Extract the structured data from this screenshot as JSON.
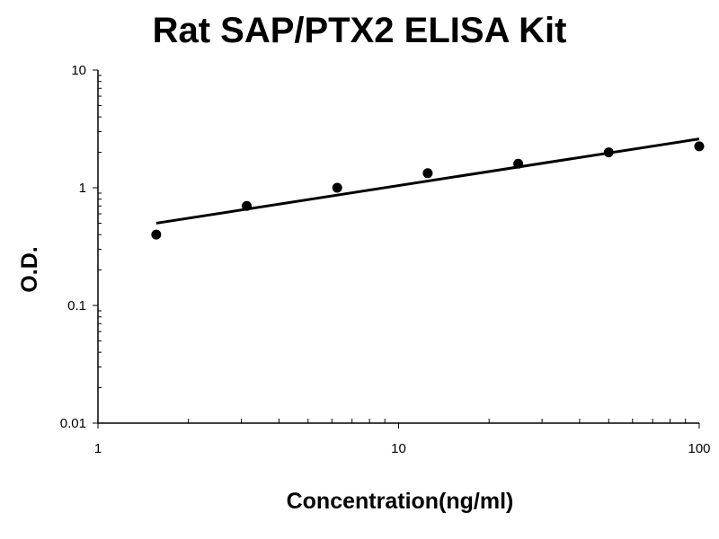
{
  "chart_data": {
    "type": "scatter",
    "title": "Rat SAP/PTX2 ELISA Kit",
    "xlabel": "Concentration(ng/ml)",
    "ylabel": "O.D.",
    "x_scale": "log",
    "y_scale": "log",
    "xlim": [
      1,
      100
    ],
    "ylim": [
      0.01,
      10
    ],
    "x_ticks": [
      "1",
      "10",
      "100"
    ],
    "y_ticks": [
      "0.01",
      "0.1",
      "1",
      "10"
    ],
    "grid": false,
    "legend": "none",
    "series": [
      {
        "x": [
          1.5625,
          3.125,
          6.25,
          12.5,
          25,
          50,
          100
        ],
        "y": [
          0.4,
          0.7,
          1.0,
          1.33,
          1.6,
          2.0,
          2.25
        ]
      }
    ],
    "trendline": {
      "x": [
        1.5625,
        100
      ],
      "y": [
        0.5,
        2.6
      ]
    }
  }
}
